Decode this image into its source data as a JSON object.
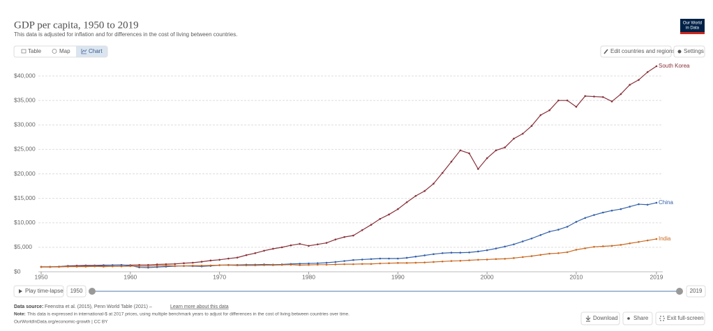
{
  "chart_data": {
    "type": "line",
    "title": "GDP per capita, 1950 to 2019",
    "subtitle": "This data is adjusted for inflation and for differences in the cost of living between countries.",
    "x": [
      1950,
      1951,
      1952,
      1953,
      1954,
      1955,
      1956,
      1957,
      1958,
      1959,
      1960,
      1961,
      1962,
      1963,
      1964,
      1965,
      1966,
      1967,
      1968,
      1969,
      1970,
      1971,
      1972,
      1973,
      1974,
      1975,
      1976,
      1977,
      1978,
      1979,
      1980,
      1981,
      1982,
      1983,
      1984,
      1985,
      1986,
      1987,
      1988,
      1989,
      1990,
      1991,
      1992,
      1993,
      1994,
      1995,
      1996,
      1997,
      1998,
      1999,
      2000,
      2001,
      2002,
      2003,
      2004,
      2005,
      2006,
      2007,
      2008,
      2009,
      2010,
      2011,
      2012,
      2013,
      2014,
      2015,
      2016,
      2017,
      2018,
      2019
    ],
    "series": [
      {
        "name": "South Korea",
        "color": "#883039",
        "values": [
          1000,
          1000,
          1050,
          1200,
          1250,
          1300,
          1300,
          1350,
          1350,
          1350,
          1350,
          1400,
          1400,
          1500,
          1550,
          1600,
          1750,
          1850,
          2050,
          2300,
          2450,
          2700,
          2900,
          3400,
          3800,
          4300,
          4700,
          5000,
          5400,
          5700,
          5300,
          5600,
          5900,
          6600,
          7100,
          7400,
          8500,
          9600,
          10800,
          11700,
          12800,
          14200,
          15500,
          16500,
          18000,
          20200,
          22500,
          24800,
          24200,
          21000,
          23200,
          24800,
          25400,
          27200,
          28200,
          29800,
          32000,
          33000,
          35000,
          35000,
          33700,
          35900,
          35800,
          35700,
          34800,
          36300,
          38200,
          39200,
          40800,
          42000
        ]
      },
      {
        "name": "China",
        "color": "#3360a9",
        "values": [
          1000,
          1000,
          1050,
          1100,
          1100,
          1150,
          1200,
          1250,
          1350,
          1400,
          1250,
          900,
          850,
          950,
          1050,
          1150,
          1200,
          1150,
          1100,
          1200,
          1350,
          1400,
          1400,
          1450,
          1450,
          1500,
          1450,
          1500,
          1600,
          1650,
          1700,
          1750,
          1850,
          2000,
          2200,
          2400,
          2500,
          2600,
          2700,
          2700,
          2700,
          2850,
          3100,
          3350,
          3600,
          3800,
          3900,
          3900,
          3950,
          4150,
          4400,
          4750,
          5150,
          5600,
          6200,
          6800,
          7500,
          8200,
          8600,
          9200,
          10200,
          11000,
          11600,
          12100,
          12500,
          12800,
          13300,
          13800,
          13700,
          14100
        ]
      },
      {
        "name": "India",
        "color": "#c9681f",
        "values": [
          1000,
          1000,
          1000,
          1050,
          1050,
          1050,
          1100,
          1050,
          1100,
          1100,
          1150,
          1150,
          1150,
          1200,
          1250,
          1200,
          1200,
          1250,
          1250,
          1300,
          1350,
          1350,
          1300,
          1300,
          1300,
          1350,
          1350,
          1400,
          1450,
          1350,
          1400,
          1450,
          1450,
          1500,
          1550,
          1550,
          1600,
          1600,
          1700,
          1750,
          1800,
          1800,
          1850,
          1900,
          2000,
          2100,
          2200,
          2250,
          2350,
          2450,
          2500,
          2600,
          2650,
          2800,
          3000,
          3200,
          3450,
          3700,
          3800,
          4000,
          4500,
          4800,
          5100,
          5200,
          5300,
          5500,
          5800,
          6100,
          6400,
          6700
        ]
      }
    ],
    "xlim": [
      1950,
      2019
    ],
    "xticks": [
      1950,
      1960,
      1970,
      1980,
      1990,
      2000,
      2010,
      2019
    ],
    "ylim": [
      0,
      42000
    ],
    "yticks": [
      {
        "value": 0,
        "label": "$0"
      },
      {
        "value": 5000,
        "label": "$5,000"
      },
      {
        "value": 10000,
        "label": "$10,000"
      },
      {
        "value": 15000,
        "label": "$15,000"
      },
      {
        "value": 20000,
        "label": "$20,000"
      },
      {
        "value": 25000,
        "label": "$25,000"
      },
      {
        "value": 30000,
        "label": "$30,000"
      },
      {
        "value": 35000,
        "label": "$35,000"
      },
      {
        "value": 40000,
        "label": "$40,000"
      }
    ],
    "grid": true
  },
  "ui": {
    "logo_line1": "Our World",
    "logo_line2": "in Data",
    "tab_table": "Table",
    "tab_map": "Map",
    "tab_chart": "Chart",
    "edit_button": "Edit countries and regions",
    "settings_button": "Settings",
    "play_button": "Play time-lapse",
    "timeline_start": "1950",
    "timeline_end": "2019",
    "source_label": "Data source:",
    "source_text": "Feenstra et al. (2015), Penn World Table (2021) –",
    "source_link": "Learn more about this data",
    "note_label": "Note:",
    "note_text": "This data is expressed in international-$ at 2017 prices, using multiple benchmark years to adjust for differences in the cost of living between countries over time.",
    "url_text": "OurWorldInData.org/economic-growth | CC BY",
    "download_button": "Download",
    "share_button": "Share",
    "fullscreen_button": "Exit full-screen"
  }
}
